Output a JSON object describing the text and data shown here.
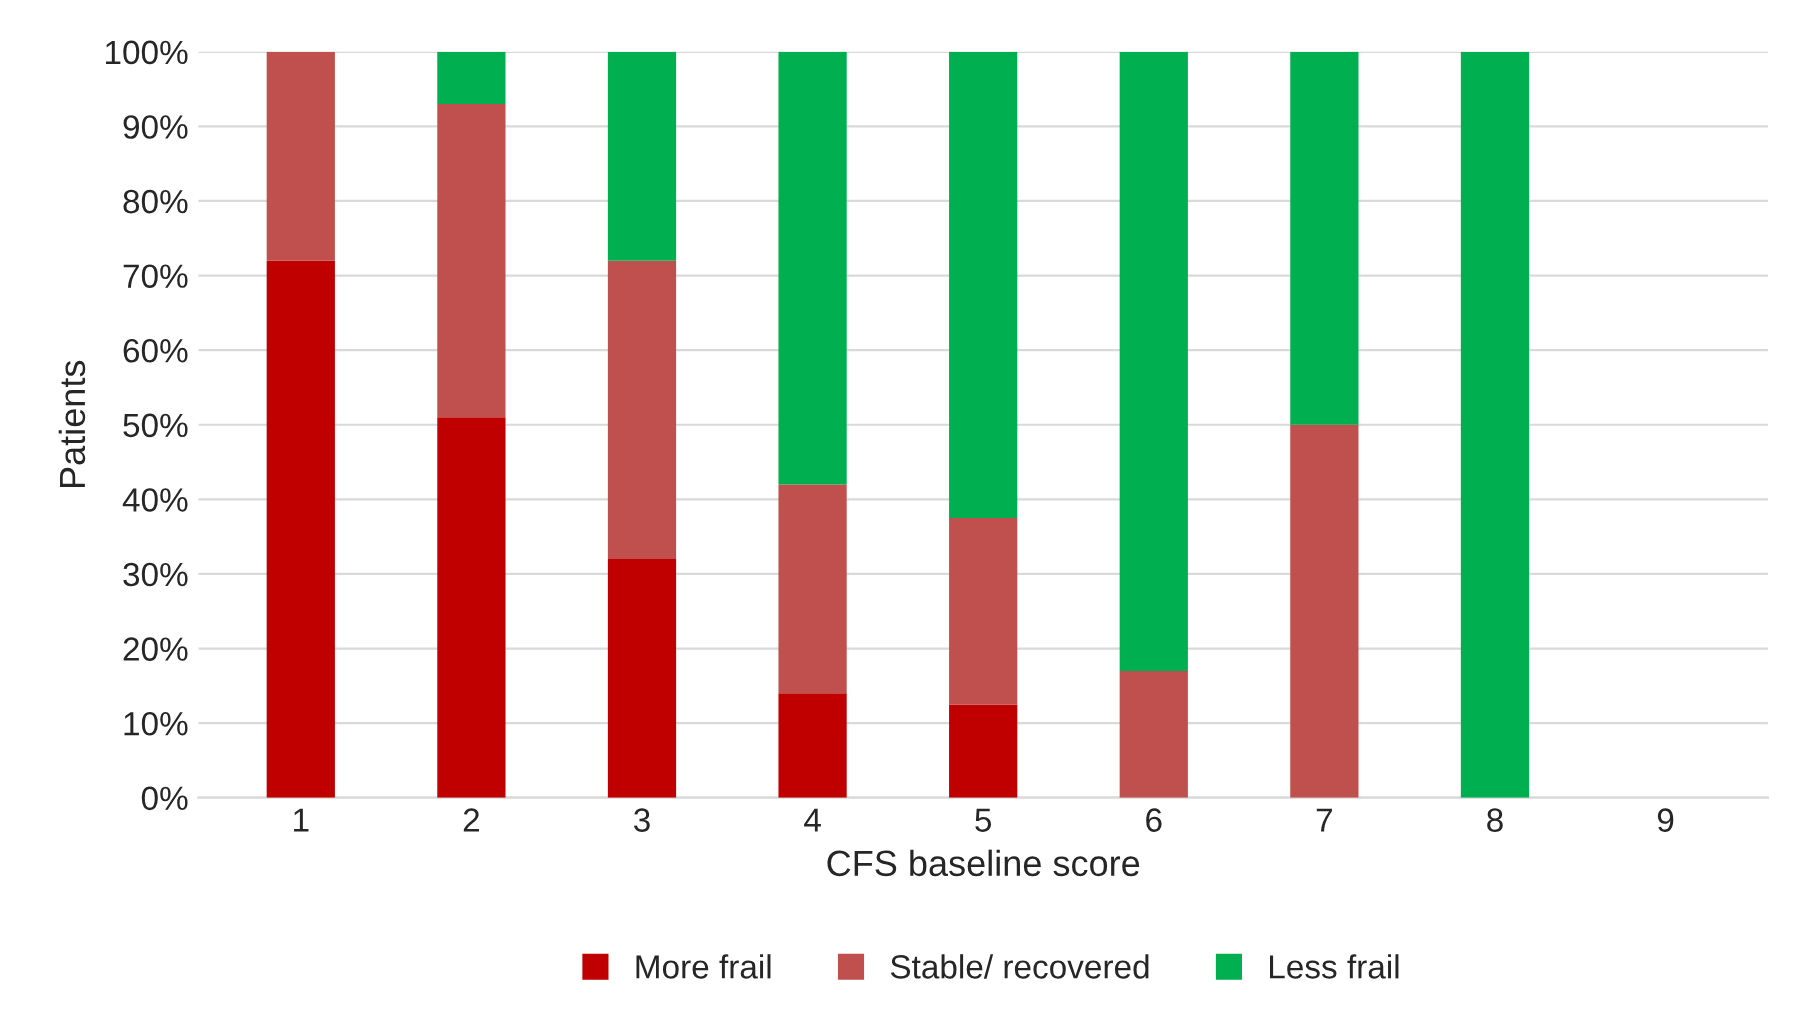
{
  "chart_data": {
    "type": "bar",
    "stacked": true,
    "xlabel": "CFS baseline score",
    "ylabel": "Patients",
    "categories": [
      "1",
      "2",
      "3",
      "4",
      "5",
      "6",
      "7",
      "8",
      "9"
    ],
    "series": [
      {
        "name": "More frail",
        "color": "#c00000",
        "values": [
          72,
          51,
          32,
          14,
          12.5,
          null,
          null,
          null,
          null
        ]
      },
      {
        "name": "Stable/ recovered",
        "color": "#c0504d",
        "values": [
          28,
          42,
          40,
          28,
          25,
          17,
          50,
          null,
          null
        ]
      },
      {
        "name": "Less frail",
        "color": "#00b050",
        "values": [
          null,
          7,
          28,
          58,
          62.5,
          83,
          50,
          100,
          null
        ]
      }
    ],
    "ylim": [
      0,
      100
    ],
    "yticks": [
      {
        "value": 0,
        "label": "0%"
      },
      {
        "value": 10,
        "label": "10%"
      },
      {
        "value": 20,
        "label": "20%"
      },
      {
        "value": 30,
        "label": "30%"
      },
      {
        "value": 40,
        "label": "40%"
      },
      {
        "value": 50,
        "label": "50%"
      },
      {
        "value": 60,
        "label": "60%"
      },
      {
        "value": 70,
        "label": "70%"
      },
      {
        "value": 80,
        "label": "80%"
      },
      {
        "value": 90,
        "label": "90%"
      },
      {
        "value": 100,
        "label": "100%"
      }
    ],
    "grid": "y",
    "legend": "bottom"
  }
}
